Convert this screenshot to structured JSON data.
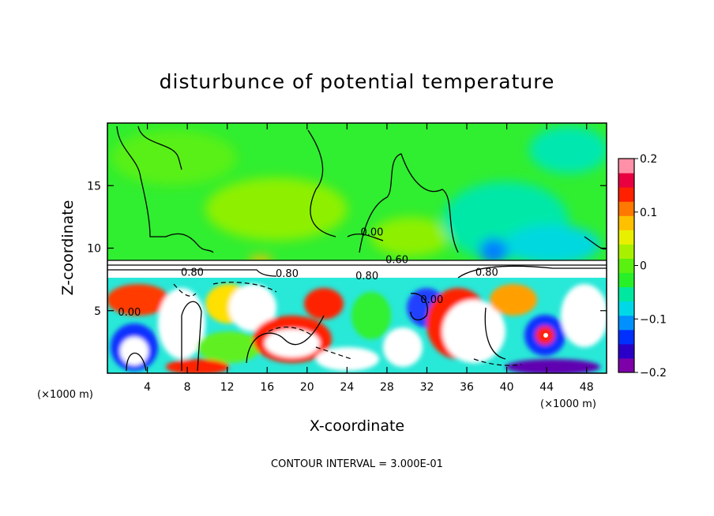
{
  "chart_data": {
    "type": "heatmap",
    "title": "disturbunce of potential temperature",
    "xlabel": "X-coordinate",
    "ylabel": "Z-coordinate",
    "x_unit_left": "(×1000 m)",
    "x_unit_right": "(×1000 m)",
    "footer": "CONTOUR INTERVAL = 3.000E-01",
    "xlim": [
      0,
      50
    ],
    "ylim": [
      0,
      20
    ],
    "x_ticks": [
      4,
      8,
      12,
      16,
      20,
      24,
      28,
      32,
      36,
      40,
      44,
      48
    ],
    "y_ticks": [
      5,
      10,
      15
    ],
    "colorbar": {
      "range": [
        -0.2,
        0.2
      ],
      "tick_values": [
        0.2,
        0.1,
        0,
        -0.1,
        -0.2
      ],
      "tick_labels": [
        "0.2",
        "0.1",
        "0",
        "−0.1",
        "−0.2"
      ],
      "colors": [
        "#7e00a8",
        "#2a00c8",
        "#0030ff",
        "#0090ff",
        "#00d8e8",
        "#00e8a0",
        "#28f028",
        "#5af010",
        "#a8f000",
        "#e8f000",
        "#ffc000",
        "#ff7800",
        "#ff2000",
        "#e80040",
        "#ff90a8"
      ]
    },
    "contour_labels": [
      {
        "x": 29,
        "y": 8.8,
        "text": "0.60"
      },
      {
        "x": 8.5,
        "y": 7.8,
        "text": "0.80"
      },
      {
        "x": 38,
        "y": 7.8,
        "text": "0.80"
      },
      {
        "x": 26.5,
        "y": 11,
        "text": "0.00"
      },
      {
        "x": 2.2,
        "y": 4.6,
        "text": "0.00"
      },
      {
        "x": 32.5,
        "y": 5.6,
        "text": "0.00"
      },
      {
        "x": 18,
        "y": 7.7,
        "text": "0.80"
      },
      {
        "x": 26,
        "y": 7.5,
        "text": "0.80"
      }
    ]
  }
}
